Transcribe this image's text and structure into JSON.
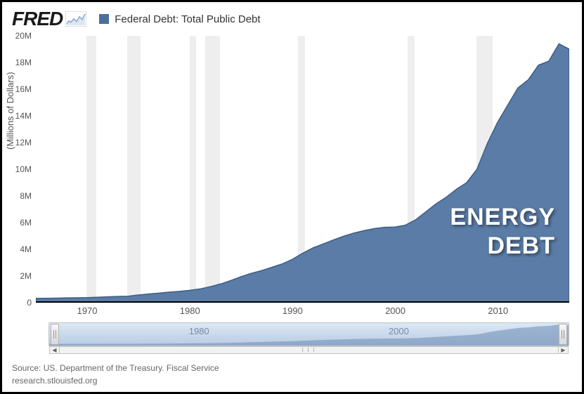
{
  "logo": {
    "text": "FRED"
  },
  "legend": {
    "swatch_color": "#4a6f9e",
    "label": "Federal Debt: Total Public Debt"
  },
  "y_axis": {
    "title": "(Millions of Dollars)",
    "min": 0,
    "max": 20,
    "ticks": [
      0,
      "2M",
      "4M",
      "6M",
      "8M",
      "10M",
      "12M",
      "14M",
      "16M",
      "18M",
      "20M"
    ],
    "tick_fontsize": 12
  },
  "x_axis": {
    "min": 1965,
    "max": 2017,
    "ticks": [
      1970,
      1980,
      1990,
      2000,
      2010
    ],
    "tick_fontsize": 13
  },
  "chart": {
    "type": "area",
    "fill_color": "#5a7ca6",
    "stroke_color": "#3d5c85",
    "stroke_width": 1.5,
    "background_color": "#ffffff",
    "series": [
      {
        "x": 1965,
        "y": 0.32
      },
      {
        "x": 1966,
        "y": 0.33
      },
      {
        "x": 1967,
        "y": 0.34
      },
      {
        "x": 1968,
        "y": 0.36
      },
      {
        "x": 1969,
        "y": 0.37
      },
      {
        "x": 1970,
        "y": 0.38
      },
      {
        "x": 1971,
        "y": 0.41
      },
      {
        "x": 1972,
        "y": 0.44
      },
      {
        "x": 1973,
        "y": 0.47
      },
      {
        "x": 1974,
        "y": 0.49
      },
      {
        "x": 1975,
        "y": 0.58
      },
      {
        "x": 1976,
        "y": 0.65
      },
      {
        "x": 1977,
        "y": 0.72
      },
      {
        "x": 1978,
        "y": 0.79
      },
      {
        "x": 1979,
        "y": 0.85
      },
      {
        "x": 1980,
        "y": 0.93
      },
      {
        "x": 1981,
        "y": 1.03
      },
      {
        "x": 1982,
        "y": 1.2
      },
      {
        "x": 1983,
        "y": 1.4
      },
      {
        "x": 1984,
        "y": 1.66
      },
      {
        "x": 1985,
        "y": 1.95
      },
      {
        "x": 1986,
        "y": 2.2
      },
      {
        "x": 1987,
        "y": 2.4
      },
      {
        "x": 1988,
        "y": 2.65
      },
      {
        "x": 1989,
        "y": 2.9
      },
      {
        "x": 1990,
        "y": 3.25
      },
      {
        "x": 1991,
        "y": 3.7
      },
      {
        "x": 1992,
        "y": 4.1
      },
      {
        "x": 1993,
        "y": 4.4
      },
      {
        "x": 1994,
        "y": 4.7
      },
      {
        "x": 1995,
        "y": 4.98
      },
      {
        "x": 1996,
        "y": 5.22
      },
      {
        "x": 1997,
        "y": 5.4
      },
      {
        "x": 1998,
        "y": 5.55
      },
      {
        "x": 1999,
        "y": 5.65
      },
      {
        "x": 2000,
        "y": 5.67
      },
      {
        "x": 2001,
        "y": 5.8
      },
      {
        "x": 2002,
        "y": 6.2
      },
      {
        "x": 2003,
        "y": 6.8
      },
      {
        "x": 2004,
        "y": 7.4
      },
      {
        "x": 2005,
        "y": 7.9
      },
      {
        "x": 2006,
        "y": 8.5
      },
      {
        "x": 2007,
        "y": 9.0
      },
      {
        "x": 2008,
        "y": 10.0
      },
      {
        "x": 2009,
        "y": 11.9
      },
      {
        "x": 2010,
        "y": 13.5
      },
      {
        "x": 2011,
        "y": 14.8
      },
      {
        "x": 2012,
        "y": 16.1
      },
      {
        "x": 2013,
        "y": 16.7
      },
      {
        "x": 2014,
        "y": 17.8
      },
      {
        "x": 2015,
        "y": 18.1
      },
      {
        "x": 2016,
        "y": 19.4
      },
      {
        "x": 2017,
        "y": 19.0
      }
    ]
  },
  "recession_bands": {
    "color": "#eeeeee",
    "ranges": [
      [
        1969.9,
        1970.9
      ],
      [
        1973.9,
        1975.2
      ],
      [
        1980.0,
        1980.6
      ],
      [
        1981.5,
        1982.9
      ],
      [
        1990.5,
        1991.2
      ],
      [
        2001.2,
        2001.9
      ],
      [
        2007.9,
        2009.5
      ]
    ]
  },
  "overlay_label": {
    "line1": "ENERGY",
    "line2": "DEBT",
    "color": "#ffffff",
    "fontsize": 34
  },
  "range_selector": {
    "ticks": [
      1980,
      2000
    ],
    "bg_top": "#dce8f5",
    "bg_bottom": "#b8cbe3",
    "mini_series_color": "#6e8db5"
  },
  "footer": {
    "line1": "Source: US. Department of the Treasury. Fiscal Service",
    "line2": "research.stlouisfed.org"
  }
}
